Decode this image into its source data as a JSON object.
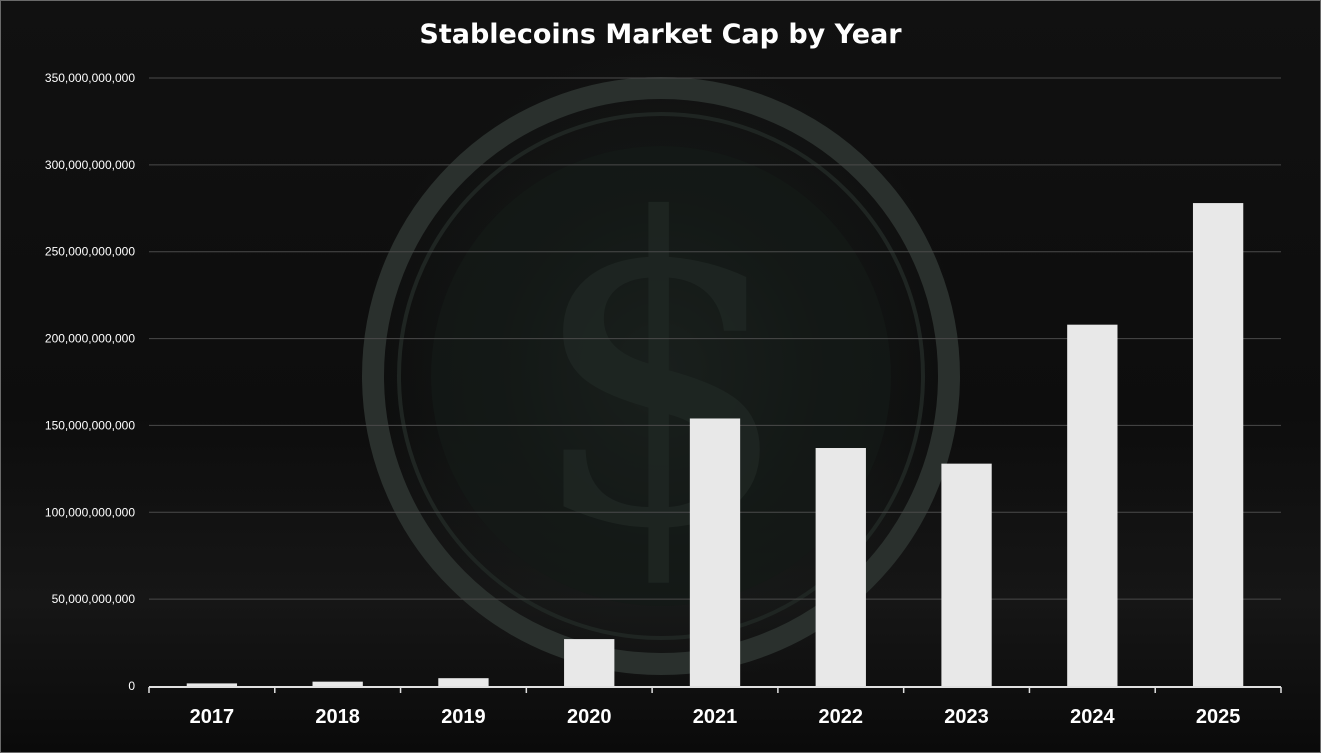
{
  "chart_data": {
    "type": "bar",
    "title": "Stablecoins Market Cap by Year",
    "xlabel": "",
    "ylabel": "",
    "categories": [
      "2017",
      "2018",
      "2019",
      "2020",
      "2021",
      "2022",
      "2023",
      "2024",
      "2025"
    ],
    "values": [
      1500000000,
      2500000000,
      4500000000,
      27000000000,
      154000000000,
      137000000000,
      128000000000,
      208000000000,
      278000000000
    ],
    "ylim": [
      0,
      350000000000
    ],
    "yticks": [
      0,
      50000000000,
      100000000000,
      150000000000,
      200000000000,
      250000000000,
      300000000000,
      350000000000
    ],
    "ytick_labels": [
      "0",
      "50,000,000,000",
      "100,000,000,000",
      "150,000,000,000",
      "200,000,000,000",
      "250,000,000,000",
      "300,000,000,000",
      "350,000,000,000"
    ],
    "grid": true,
    "bar_color": "#e8e8e8",
    "background_color": "#0d0d0d"
  }
}
